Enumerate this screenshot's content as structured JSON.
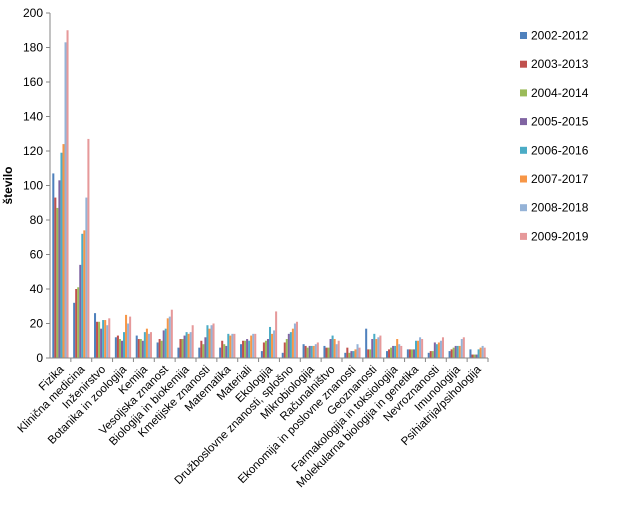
{
  "chart_data": {
    "type": "bar",
    "title": "",
    "xlabel": "",
    "ylabel": "število",
    "ylim": [
      0,
      200
    ],
    "yticks": [
      0,
      20,
      40,
      60,
      80,
      100,
      120,
      140,
      160,
      180,
      200
    ],
    "grid": false,
    "legend_position": "right",
    "categories": [
      "Fizika",
      "Klinična medicina",
      "Inženirstvo",
      "Botanika in zoologija",
      "Kemija",
      "Vesoljska znanost",
      "Biologija in biokemija",
      "Kmetijske znanosti",
      "Matematika",
      "Materiali",
      "Ekologija",
      "Družboslovne znanosti, splošno",
      "Mikrobiologija",
      "Računalništvo",
      "Ekonomija in poslovne znanosti",
      "Geoznanosti",
      "Farmakologija in toksiologija",
      "Molekularna biologija in genetika",
      "Nevroznanosti",
      "Imunologija",
      "Psihiatrija/psihologija"
    ],
    "series": [
      {
        "name": "2002-2012",
        "color": "#4F81BD",
        "values": [
          107,
          32,
          26,
          12,
          13,
          9,
          6,
          6,
          6,
          8,
          4,
          3,
          8,
          7,
          3,
          17,
          4,
          5,
          3,
          4,
          5
        ]
      },
      {
        "name": "2003-2013",
        "color": "#C0504D",
        "values": [
          93,
          40,
          21,
          13,
          11,
          11,
          11,
          10,
          10,
          10,
          9,
          9,
          7,
          6,
          6,
          5,
          5,
          5,
          4,
          5,
          2
        ]
      },
      {
        "name": "2004-2014",
        "color": "#9BBB59",
        "values": [
          87,
          41,
          21,
          11,
          11,
          10,
          11,
          8,
          8,
          10,
          10,
          11,
          6,
          6,
          3,
          5,
          6,
          5,
          4,
          6,
          2
        ]
      },
      {
        "name": "2005-2015",
        "color": "#8064A2",
        "values": [
          103,
          54,
          17,
          10,
          10,
          16,
          13,
          12,
          7,
          11,
          11,
          14,
          7,
          11,
          4,
          11,
          7,
          5,
          9,
          7,
          2
        ]
      },
      {
        "name": "2006-2016",
        "color": "#4BACC6",
        "values": [
          119,
          72,
          22,
          15,
          15,
          17,
          15,
          19,
          14,
          10,
          18,
          15,
          7,
          13,
          4,
          14,
          7,
          10,
          8,
          7,
          5
        ]
      },
      {
        "name": "2007-2017",
        "color": "#F79646",
        "values": [
          124,
          74,
          22,
          25,
          17,
          23,
          14,
          17,
          13,
          13,
          14,
          17,
          7,
          11,
          5,
          11,
          11,
          10,
          9,
          7,
          6
        ]
      },
      {
        "name": "2008-2018",
        "color": "#95B3D7",
        "values": [
          183,
          93,
          19,
          20,
          14,
          24,
          15,
          19,
          14,
          14,
          16,
          20,
          8,
          8,
          8,
          12,
          8,
          12,
          10,
          11,
          7
        ]
      },
      {
        "name": "2009-2019",
        "color": "#E6999A",
        "values": [
          190,
          127,
          23,
          24,
          15,
          28,
          19,
          20,
          14,
          14,
          27,
          21,
          9,
          10,
          6,
          13,
          7,
          11,
          12,
          12,
          6
        ]
      }
    ]
  }
}
